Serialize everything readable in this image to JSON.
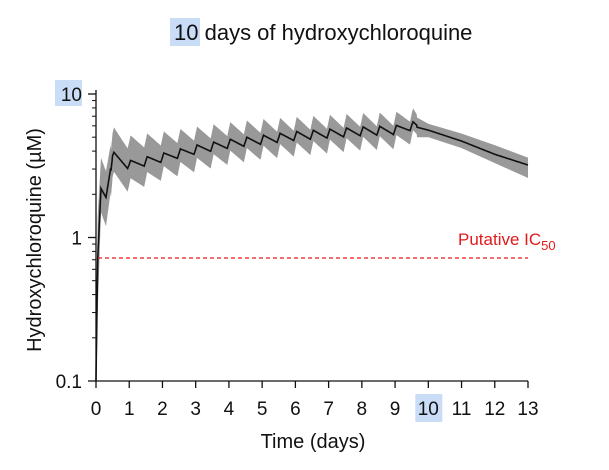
{
  "chart_data": {
    "type": "line",
    "title": {
      "highlight": "10",
      "rest": " days of hydroxychloroquine"
    },
    "xlabel": "Time (days)",
    "ylabel": "Hydroxychloroquine (µM)",
    "xlim": [
      0,
      13
    ],
    "ylim": [
      0.1,
      10
    ],
    "yscale": "log",
    "x_ticks": [
      0,
      1,
      2,
      3,
      4,
      5,
      6,
      7,
      8,
      9,
      10,
      11,
      12,
      13
    ],
    "x_tick_labels": [
      "0",
      "1",
      "2",
      "3",
      "4",
      "5",
      "6",
      "7",
      "8",
      "9",
      "10",
      "11",
      "12",
      "13"
    ],
    "highlighted_x_tick": "10",
    "y_ticks": [
      0.1,
      1,
      10
    ],
    "y_tick_labels": [
      "0.1",
      "1",
      "10"
    ],
    "highlighted_y_tick": "10",
    "grid": false,
    "dosing": {
      "interval_days": 0.5,
      "last_dose_day": 9.5
    },
    "series": [
      {
        "style": "median-with-band",
        "color": "#111111",
        "band_color": "#999999",
        "points": [
          {
            "x": 0,
            "y": 0.1,
            "lo": 0.1,
            "hi": 0.1
          },
          {
            "x": 0.05,
            "y": 0.7,
            "lo": 0.3,
            "hi": 1.4
          },
          {
            "x": 0.15,
            "y": 2.2,
            "lo": 1.5,
            "hi": 3.6
          },
          {
            "x": 0.3,
            "y": 1.9,
            "lo": 1.2,
            "hi": 2.9
          },
          {
            "x": 0.5,
            "y": 3.7,
            "lo": 2.6,
            "hi": 5.3
          },
          {
            "x": 1,
            "y": 3.2,
            "lo": 2.3,
            "hi": 4.6
          },
          {
            "x": 2,
            "y": 3.6,
            "lo": 2.8,
            "hi": 4.9
          },
          {
            "x": 3,
            "y": 4.1,
            "lo": 3.2,
            "hi": 5.3
          },
          {
            "x": 4,
            "y": 4.5,
            "lo": 3.6,
            "hi": 5.7
          },
          {
            "x": 5,
            "y": 4.8,
            "lo": 3.9,
            "hi": 6
          },
          {
            "x": 6,
            "y": 5.1,
            "lo": 4.1,
            "hi": 6.2
          },
          {
            "x": 7,
            "y": 5.3,
            "lo": 4.3,
            "hi": 6.4
          },
          {
            "x": 8,
            "y": 5.5,
            "lo": 4.5,
            "hi": 6.6
          },
          {
            "x": 9,
            "y": 5.6,
            "lo": 4.6,
            "hi": 6.7
          },
          {
            "x": 9.5,
            "y": 6.0,
            "lo": 5.0,
            "hi": 7.2
          },
          {
            "x": 10,
            "y": 5.6,
            "lo": 5.0,
            "hi": 6.2
          },
          {
            "x": 11,
            "y": 4.7,
            "lo": 4.2,
            "hi": 5.3
          },
          {
            "x": 12,
            "y": 3.8,
            "lo": 3.3,
            "hi": 4.4
          },
          {
            "x": 13,
            "y": 3.2,
            "lo": 2.6,
            "hi": 3.6
          }
        ]
      }
    ],
    "reference_line": {
      "y": 0.72,
      "label_main": "Putative IC",
      "label_sub": "50",
      "color": "#e31a1c"
    }
  }
}
